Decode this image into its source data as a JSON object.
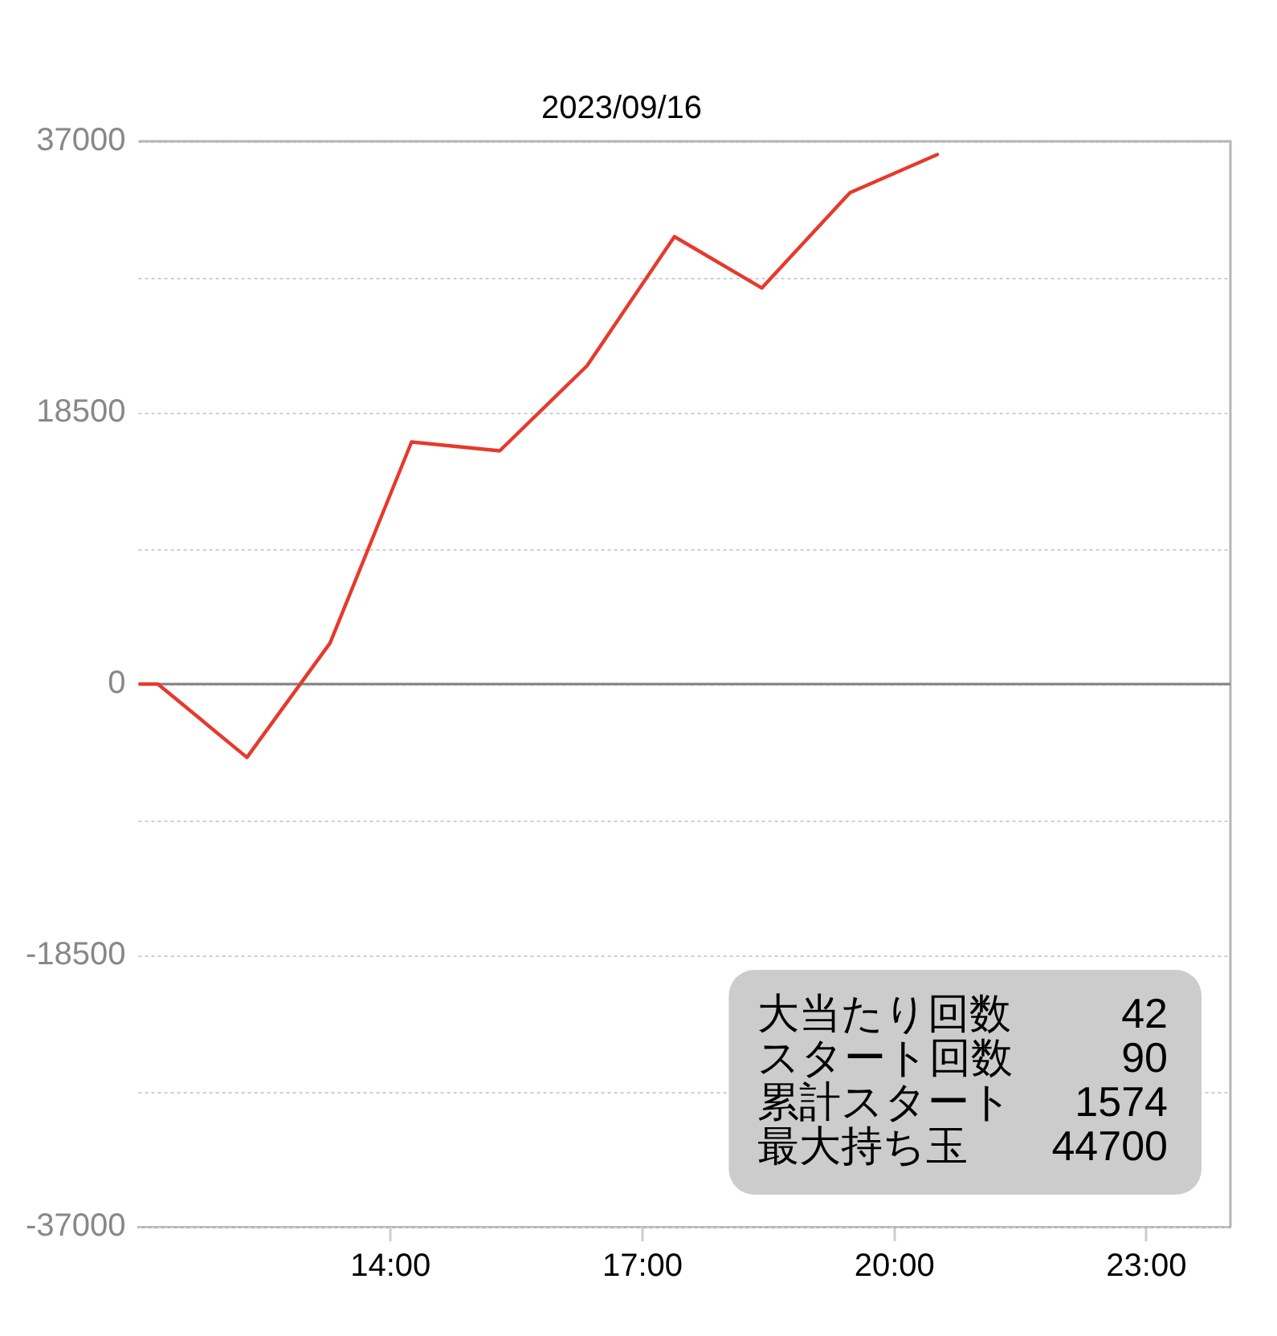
{
  "chart_data": {
    "type": "line",
    "title": "2023/09/16",
    "x": [
      11,
      11.23,
      12.29,
      13.28,
      14.25,
      15.3,
      16.34,
      17.38,
      18.42,
      19.47,
      20.51
    ],
    "values": [
      0,
      0,
      -5000,
      2800,
      16500,
      15900,
      21700,
      30500,
      27000,
      33500,
      36100
    ],
    "color": "#e53a2c",
    "xlim": [
      11,
      24
    ],
    "xticks": [
      {
        "value": 14,
        "label": "14:00"
      },
      {
        "value": 17,
        "label": "17:00"
      },
      {
        "value": 20,
        "label": "20:00"
      },
      {
        "value": 23,
        "label": "23:00"
      }
    ],
    "ylim": [
      -37000,
      37000
    ],
    "yticks": [
      -37000,
      {
        "value": -27750,
        "label": null
      },
      -18500,
      {
        "value": -9250,
        "label": null
      },
      0,
      {
        "value": 9250,
        "label": null
      },
      18500,
      {
        "value": 27750,
        "label": null
      },
      37000
    ],
    "grid": "y",
    "ref_lines": [
      {
        "axis": "y",
        "value": 0,
        "color": "#808080"
      }
    ],
    "annotations": [
      "大当たり回数 42",
      "スタート回数 90",
      "累計スタート 1574",
      "最大持ち玉 44700"
    ]
  }
}
